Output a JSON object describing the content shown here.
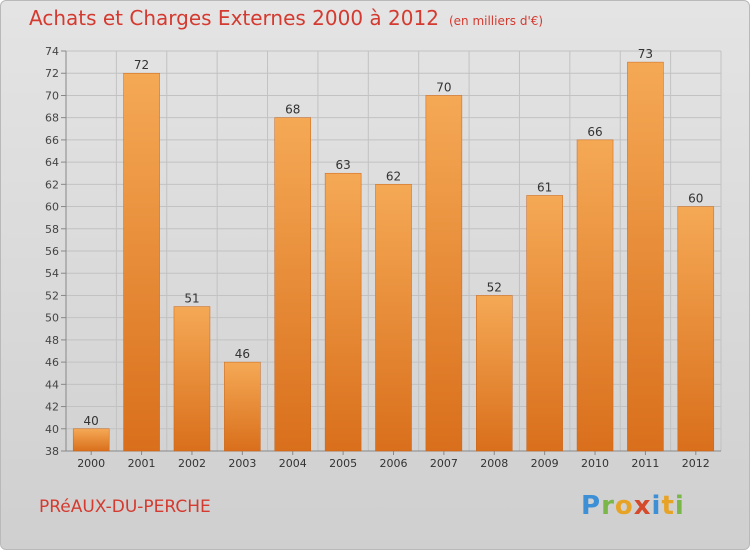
{
  "header": {
    "title": "Achats et Charges Externes 2000 à 2012",
    "unit": "(en milliers d'€)"
  },
  "footer": {
    "town": "PRéAUX-DU-PERCHE",
    "logo": "Proxiti"
  },
  "colors": {
    "accent": "#d43a2f",
    "bar_light": "#f5a955",
    "bar_dark": "#d96f1c"
  },
  "chart_data": {
    "type": "bar",
    "title": "Achats et Charges Externes 2000 à 2012",
    "categories": [
      "2000",
      "2001",
      "2002",
      "2003",
      "2004",
      "2005",
      "2006",
      "2007",
      "2008",
      "2009",
      "2010",
      "2011",
      "2012"
    ],
    "values": [
      40,
      72,
      51,
      46,
      68,
      63,
      62,
      70,
      52,
      61,
      66,
      73,
      60
    ],
    "xlabel": "",
    "ylabel": "",
    "ylim": [
      38,
      74
    ],
    "yticks": [
      38,
      40,
      42,
      44,
      46,
      48,
      50,
      52,
      54,
      56,
      58,
      60,
      62,
      64,
      66,
      68,
      70,
      72,
      74
    ],
    "grid": true,
    "data_labels": true
  }
}
